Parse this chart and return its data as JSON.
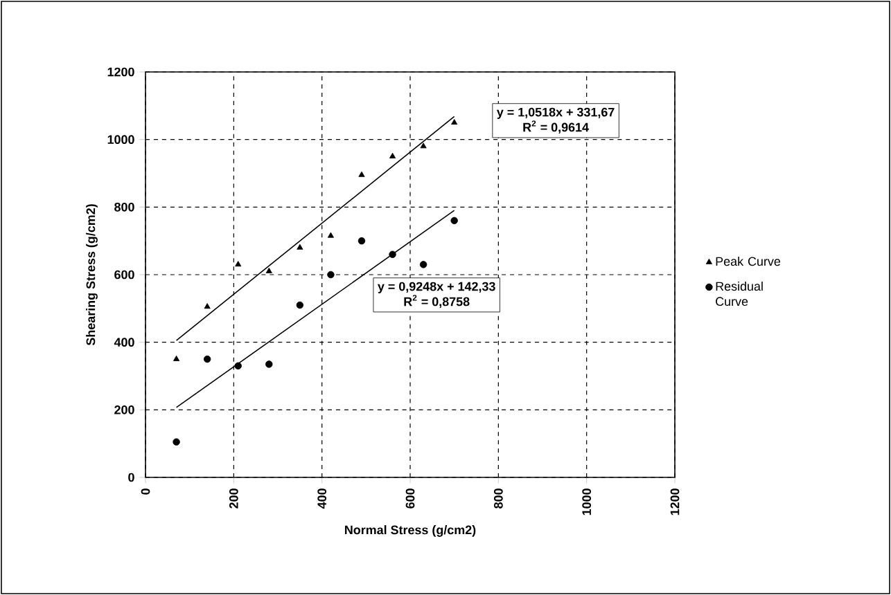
{
  "chart_data": {
    "type": "scatter",
    "xlabel": "Normal Stress (g/cm2)",
    "ylabel": "Shearing Stress (g/cm2)",
    "xlim": [
      0,
      1200
    ],
    "xticks": [
      0,
      200,
      400,
      600,
      800,
      1000,
      1200
    ],
    "ylim": [
      0,
      1200
    ],
    "yticks": [
      0,
      200,
      400,
      600,
      800,
      1000,
      1200
    ],
    "grid": true,
    "legend": "right",
    "series": [
      {
        "name": "Peak Curve",
        "color": "#000000",
        "marker": "triangle",
        "x": [
          70,
          140,
          210,
          280,
          350,
          420,
          490,
          560,
          630,
          700
        ],
        "values": [
          350,
          505,
          630,
          610,
          680,
          715,
          895,
          950,
          980,
          1050
        ]
      },
      {
        "name": "Residual Curve",
        "color": "#000000",
        "marker": "circle",
        "x": [
          70,
          140,
          210,
          280,
          350,
          420,
          490,
          560,
          630,
          700
        ],
        "values": [
          105,
          350,
          330,
          335,
          510,
          600,
          700,
          660,
          630,
          760
        ]
      },
      {
        "type": "line",
        "color": "#000000",
        "marker": "none",
        "x": [
          70,
          700
        ],
        "values": [
          405,
          1068
        ]
      },
      {
        "type": "line",
        "color": "#000000",
        "marker": "none",
        "x": [
          70,
          700
        ],
        "values": [
          207,
          790
        ]
      }
    ],
    "annotations": [
      "y = 1,0518x + 331,67",
      "R$^{2}$ = 0,9614",
      "y = 0,9248x + 142,33",
      "R$^{2}$ = 0,8758"
    ]
  }
}
